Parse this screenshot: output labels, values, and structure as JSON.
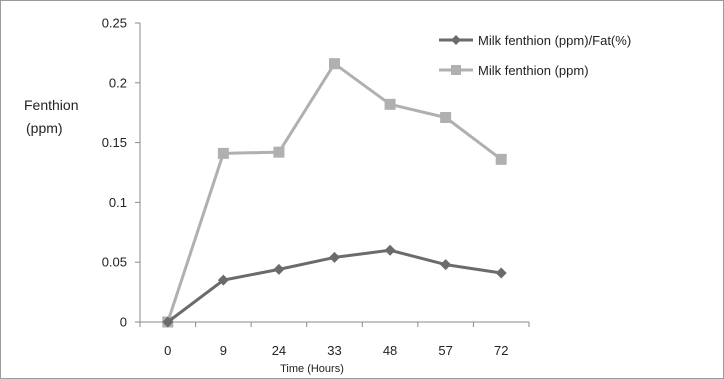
{
  "chart_data": {
    "type": "line",
    "title": "",
    "xlabel": "Time (Hours)",
    "ylabel_lines": [
      "Fenthion",
      "(ppm)"
    ],
    "categories": [
      "0",
      "9",
      "24",
      "33",
      "48",
      "57",
      "72"
    ],
    "ylim": [
      0,
      0.25
    ],
    "yticks": [
      "0",
      "0.05",
      "0.1",
      "0.15",
      "0.2",
      "0.25"
    ],
    "grid": false,
    "legend_position": "top-right",
    "series": [
      {
        "name": "Milk fenthion (ppm)/Fat(%)",
        "values": [
          0,
          0.035,
          0.044,
          0.054,
          0.06,
          0.048,
          0.041
        ],
        "color": "#6b6b6b",
        "marker": "diamond"
      },
      {
        "name": "Milk fenthion (ppm)",
        "values": [
          0,
          0.141,
          0.142,
          0.216,
          0.182,
          0.171,
          0.136
        ],
        "color": "#b0b0b0",
        "marker": "square"
      }
    ]
  }
}
